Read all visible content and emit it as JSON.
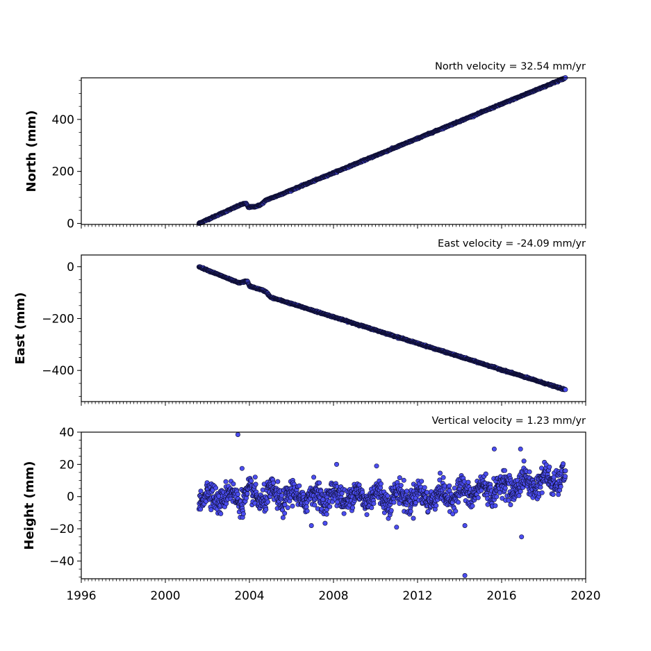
{
  "colors": {
    "marker_fill": "#4b4df0",
    "marker_edge": "#0d0d2e",
    "axes": "#000000"
  },
  "x_axis": {
    "tick_labels": [
      "1996",
      "2000",
      "2004",
      "2008",
      "2012",
      "2016",
      "2020"
    ],
    "ticks": [
      1996,
      2000,
      2004,
      2008,
      2012,
      2016,
      2020
    ],
    "range": [
      1996,
      2020
    ],
    "minor_tick_step_years": 0.1667
  },
  "chart_data": [
    {
      "type": "scatter",
      "title": "North velocity = 32.54 mm/yr",
      "xlabel": "",
      "ylabel": "North (mm)",
      "ylim": [
        -4,
        560
      ],
      "yticks": [
        0,
        200,
        400
      ],
      "ytick_labels": [
        "0",
        "200",
        "400"
      ],
      "ytick_minor_step": 50,
      "velocity": 32.54,
      "x_start": 2001.6,
      "x_end": 2019.05,
      "start_value": 0,
      "end_value": 560,
      "features": [
        {
          "x": 2003.6,
          "y": 72
        },
        {
          "x": 2003.7,
          "y": 75
        },
        {
          "x": 2003.85,
          "y": 76
        },
        {
          "x": 2003.95,
          "y": 62
        },
        {
          "x": 2004.3,
          "y": 65
        },
        {
          "x": 2004.55,
          "y": 72
        },
        {
          "x": 2004.8,
          "y": 90
        },
        {
          "x": 2005.3,
          "y": 105
        },
        {
          "x": 2019.05,
          "y": 560
        }
      ],
      "grid": false
    },
    {
      "type": "scatter",
      "title": "East velocity = -24.09 mm/yr",
      "xlabel": "",
      "ylabel": "East (mm)",
      "ylim": [
        -520,
        45
      ],
      "yticks": [
        0,
        -200,
        -400
      ],
      "ytick_labels": [
        "0",
        "−200",
        "−400"
      ],
      "ytick_minor_step": 50,
      "velocity": -24.09,
      "x_start": 2001.6,
      "x_end": 2019.05,
      "start_value": 0,
      "end_value": -475,
      "features": [
        {
          "x": 2003.5,
          "y": -63
        },
        {
          "x": 2003.9,
          "y": -55
        },
        {
          "x": 2004.0,
          "y": -75
        },
        {
          "x": 2004.6,
          "y": -90
        },
        {
          "x": 2004.8,
          "y": -97
        },
        {
          "x": 2005.0,
          "y": -118
        },
        {
          "x": 2005.5,
          "y": -130
        },
        {
          "x": 2019.05,
          "y": -475
        }
      ],
      "grid": false
    },
    {
      "type": "scatter",
      "title": "Vertical velocity = 1.23 mm/yr",
      "xlabel": "",
      "ylabel": "Height (mm)",
      "ylim": [
        -51,
        40
      ],
      "yticks": [
        40,
        20,
        0,
        -20,
        -40
      ],
      "ytick_labels": [
        "40",
        "20",
        "0",
        "−20",
        "−40"
      ],
      "ytick_minor_step": 5,
      "velocity": 1.23,
      "x_start": 2001.6,
      "x_end": 2019.05,
      "scatter_sd_mm": 6,
      "outliers": [
        {
          "x": 2003.45,
          "y": 38.5
        },
        {
          "x": 2014.25,
          "y": -18
        },
        {
          "x": 2014.25,
          "y": -49
        },
        {
          "x": 2016.95,
          "y": -25
        },
        {
          "x": 2015.65,
          "y": 29.5
        },
        {
          "x": 2016.9,
          "y": 29.5
        },
        {
          "x": 2003.65,
          "y": 17.5
        },
        {
          "x": 2008.15,
          "y": 20
        },
        {
          "x": 2010.05,
          "y": 19
        },
        {
          "x": 2006.95,
          "y": -18
        },
        {
          "x": 2011.0,
          "y": -19
        }
      ],
      "grid": false
    }
  ]
}
